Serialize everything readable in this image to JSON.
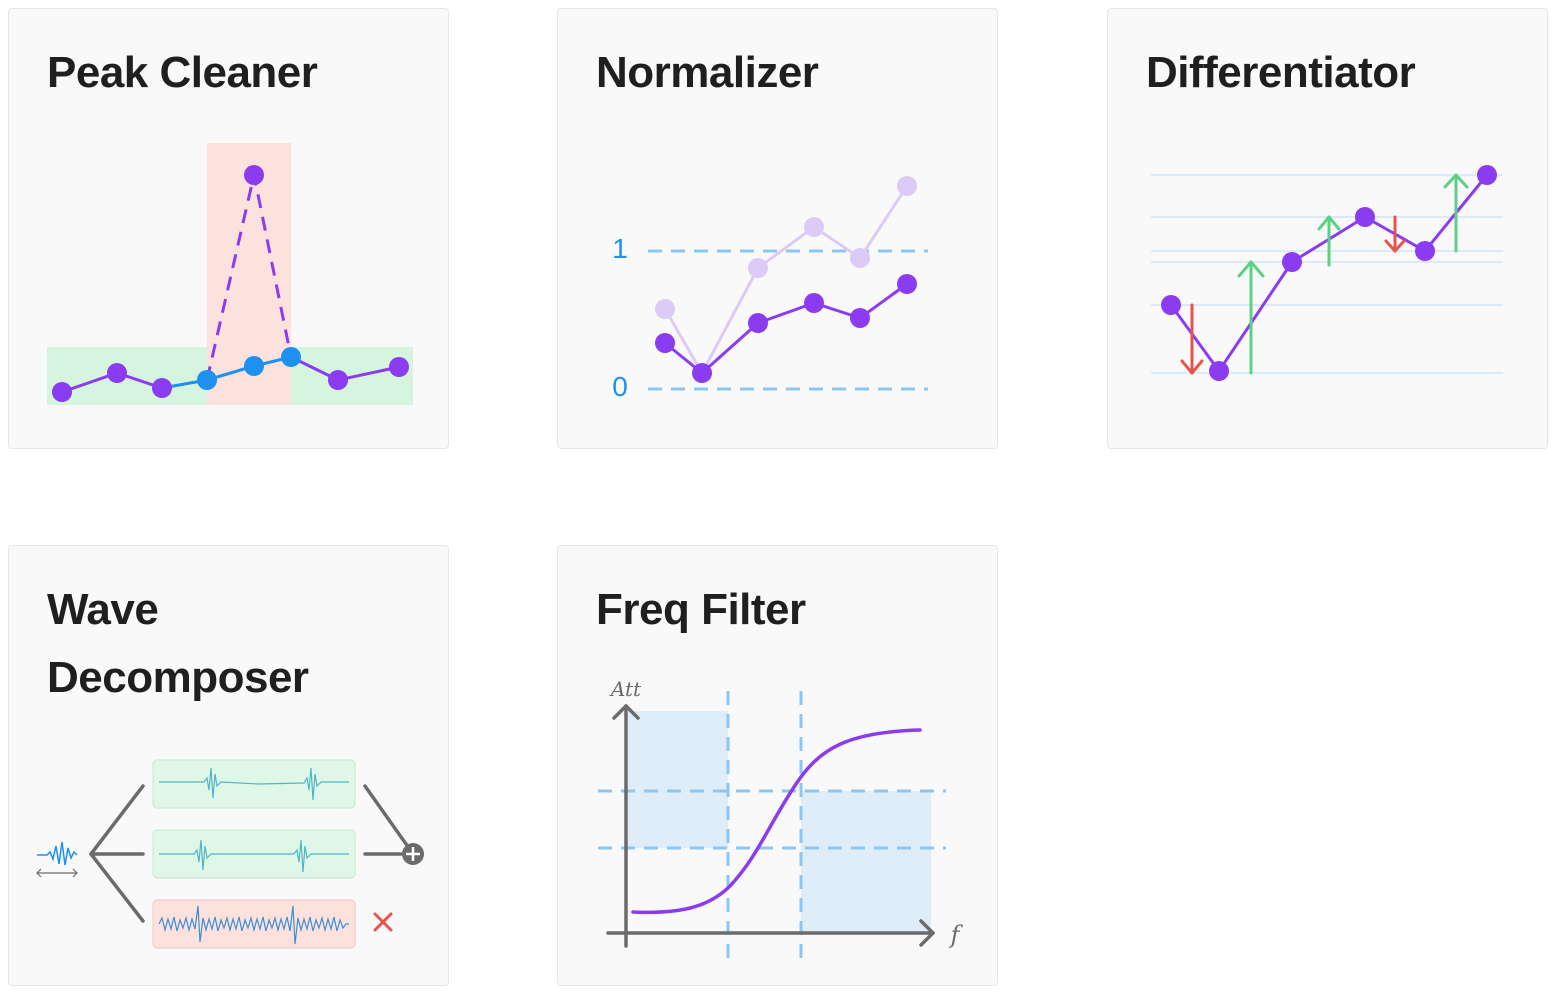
{
  "cards": [
    {
      "title": "Peak Cleaner"
    },
    {
      "title": "Normalizer",
      "axis_labels": {
        "one": "1",
        "zero": "0"
      }
    },
    {
      "title": "Differentiator"
    },
    {
      "title": "Wave Decomposer"
    },
    {
      "title": "Freq Filter",
      "axis_labels": {
        "y": "Att",
        "x": "f"
      }
    }
  ],
  "colors": {
    "purple": "#8b3cf0",
    "purple_light": "#dccbf6",
    "blue": "#1e90f0",
    "dash_blue": "#8ac7f5",
    "green": "#5cd184",
    "red": "#e5554e",
    "green_fill": "#d6f5df",
    "red_fill": "#fde1dd",
    "band_fill": "#deedf8",
    "axis_gray": "#6b6b6b"
  }
}
